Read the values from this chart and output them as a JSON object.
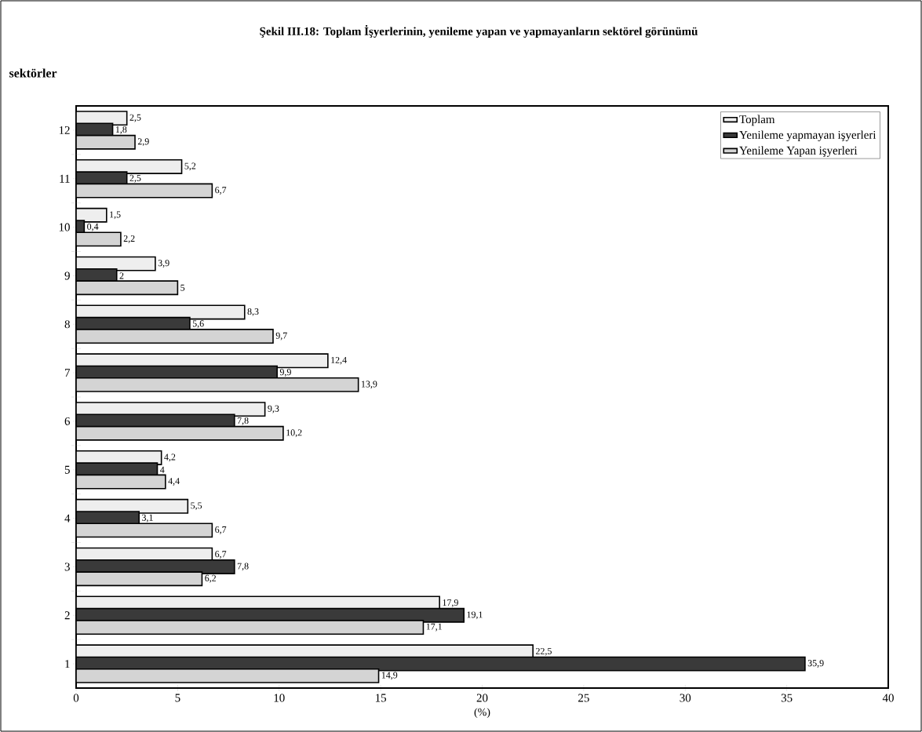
{
  "chart_data": {
    "type": "bar",
    "orientation": "horizontal",
    "title": "Şekil III.18: Toplam İşyerlerinin, yenileme yapan ve yapmayanların sektörel görünümü",
    "ylabel": "sektörler",
    "xlabel": "(%)",
    "categories": [
      "12",
      "11",
      "10",
      "9",
      "8",
      "7",
      "6",
      "5",
      "4",
      "3",
      "2",
      "1"
    ],
    "series": [
      {
        "name": "Toplam",
        "color": "#eeeeee",
        "values": [
          2.5,
          5.2,
          1.5,
          3.9,
          8.3,
          12.4,
          9.3,
          4.2,
          5.5,
          6.7,
          17.9,
          22.5
        ],
        "value_labels": [
          "2,5",
          "5,2",
          "1,5",
          "3,9",
          "8,3",
          "12,4",
          "9,3",
          "4,2",
          "5,5",
          "6,7",
          "17,9",
          "22,5"
        ]
      },
      {
        "name": "Yenileme yapmayan işyerleri",
        "color": "#3a3a3a",
        "values": [
          1.8,
          2.5,
          0.4,
          2,
          5.6,
          9.9,
          7.8,
          4,
          3.1,
          7.8,
          19.1,
          35.9
        ],
        "value_labels": [
          "1,8",
          "2,5",
          "0,4",
          "2",
          "5,6",
          "9,9",
          "7,8",
          "4",
          "3,1",
          "7,8",
          "19,1",
          "35,9"
        ]
      },
      {
        "name": "Yenileme Yapan işyerleri",
        "color": "#d4d4d4",
        "values": [
          2.9,
          6.7,
          2.2,
          5,
          9.7,
          13.9,
          10.2,
          4.4,
          6.7,
          6.2,
          17.1,
          14.9
        ],
        "value_labels": [
          "2,9",
          "6,7",
          "2,2",
          "5",
          "9,7",
          "13,9",
          "10,2",
          "4,4",
          "6,7",
          "6,2",
          "17,1",
          "14,9"
        ]
      }
    ],
    "xlim": [
      0,
      40
    ],
    "xticks": [
      0,
      5,
      10,
      15,
      20,
      25,
      30,
      35,
      40
    ],
    "legend": "top right"
  }
}
